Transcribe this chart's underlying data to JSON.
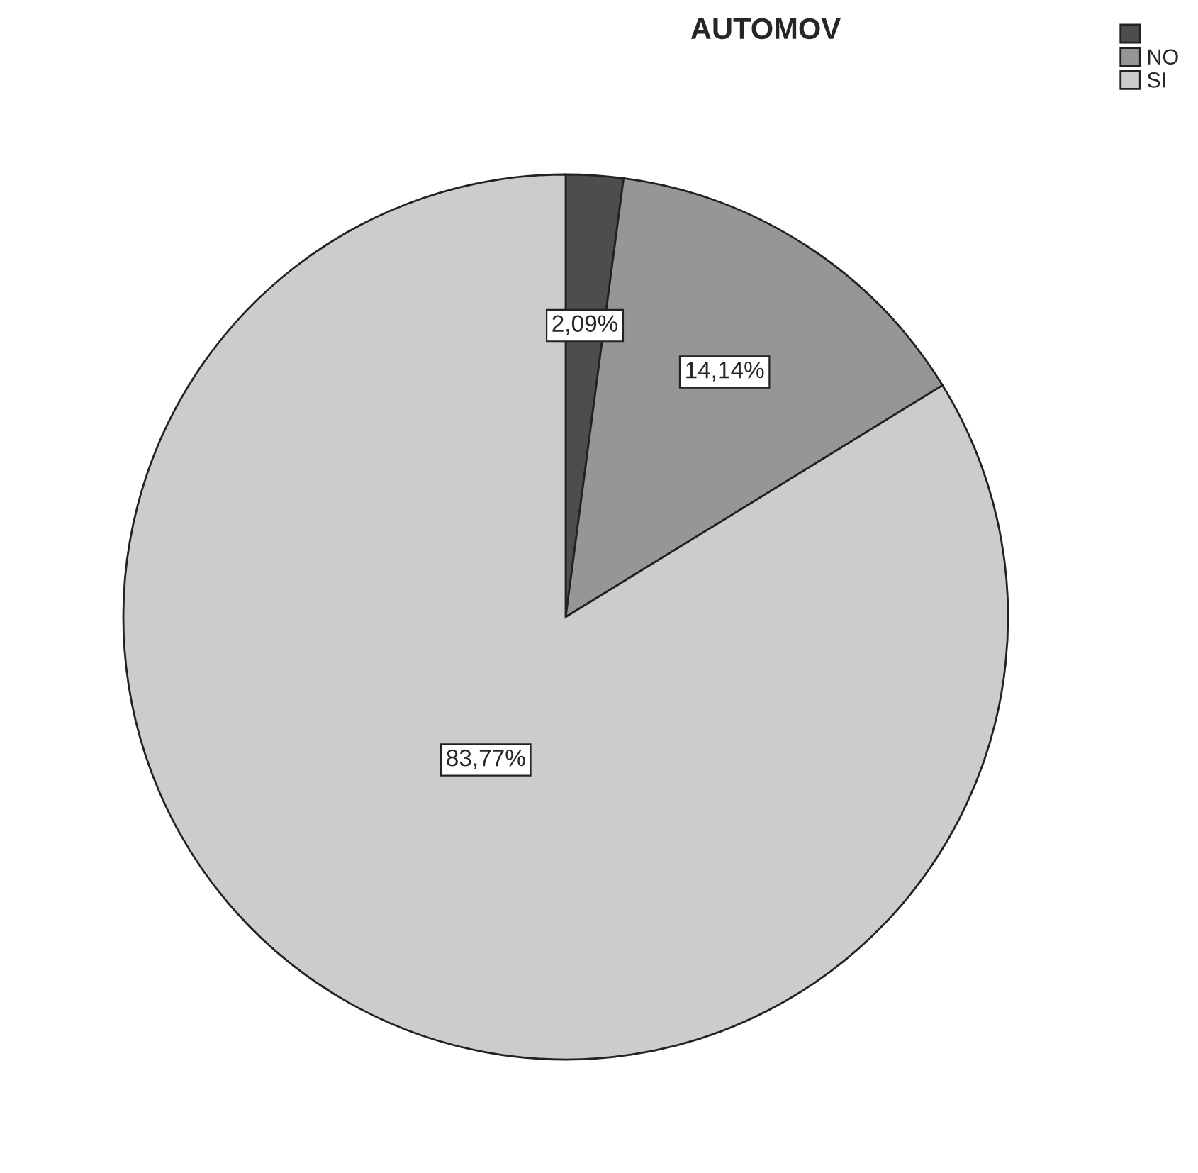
{
  "chart_data": {
    "type": "pie",
    "title": "AUTOMOV",
    "categories": [
      null,
      "NO",
      "SI"
    ],
    "values": [
      2.09,
      14.14,
      83.77
    ],
    "value_labels": [
      "2,09%",
      "14,14%",
      "83,77%"
    ],
    "colors": [
      "#4d4d4d",
      "#969696",
      "#cccccc"
    ],
    "legend": "top right"
  }
}
